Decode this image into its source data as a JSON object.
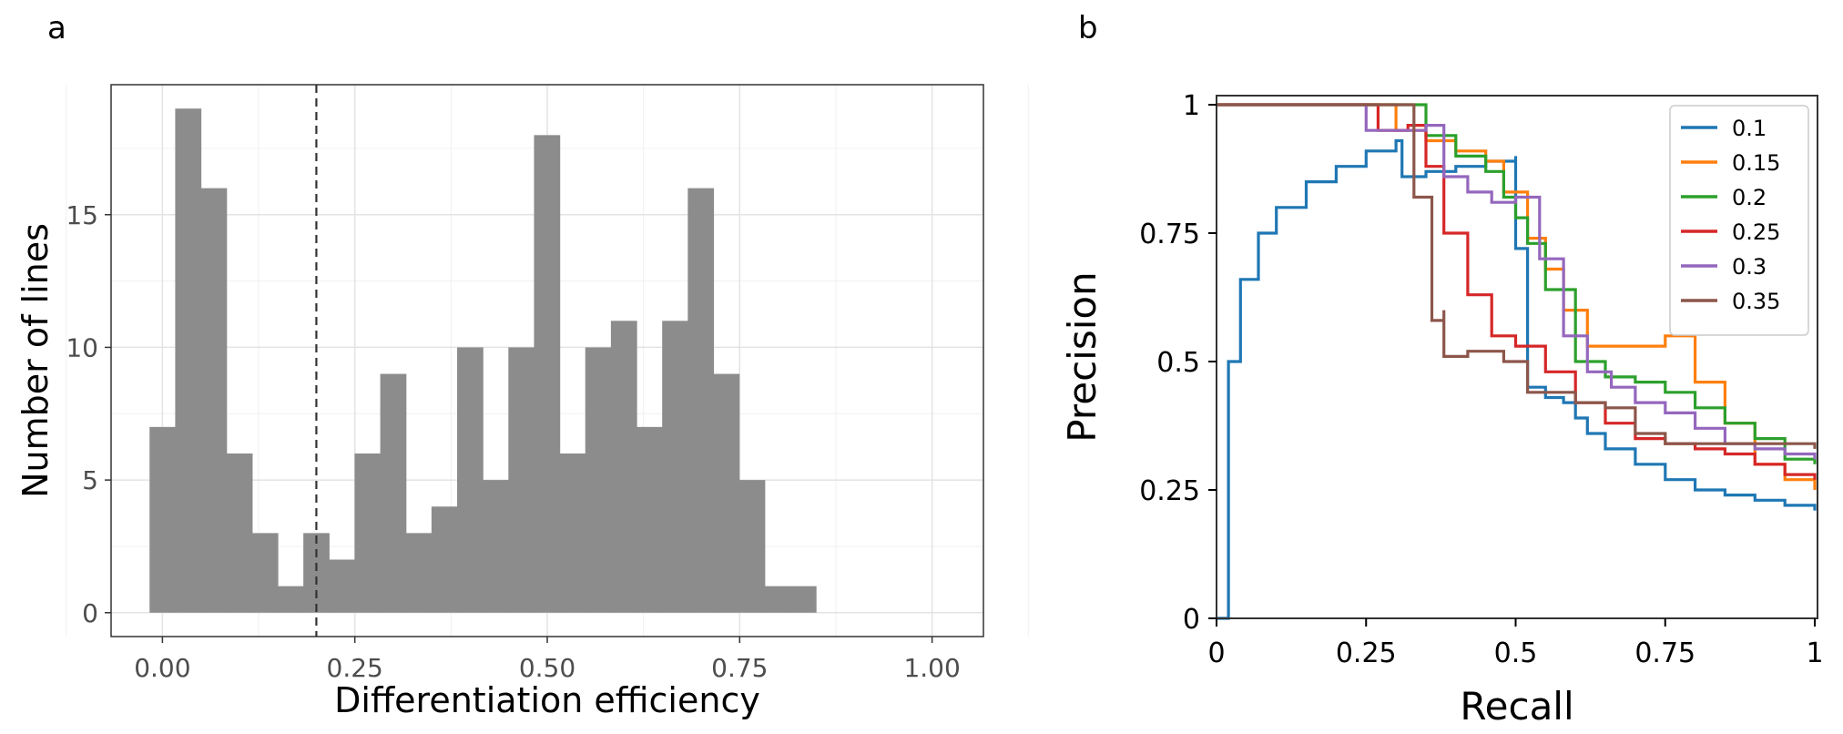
{
  "panels": {
    "a": "a",
    "b": "b"
  },
  "chart_data": [
    {
      "type": "bar",
      "panel": "a",
      "xlabel": "Differentiation efficiency",
      "ylabel": "Number of lines",
      "bin_width": 0.0333,
      "bin_start": -0.0167,
      "values": [
        7,
        19,
        16,
        6,
        3,
        1,
        3,
        2,
        6,
        9,
        3,
        4,
        10,
        5,
        10,
        18,
        6,
        10,
        11,
        7,
        11,
        16,
        9,
        5,
        1,
        1
      ],
      "xlim": [
        -0.0667,
        1.0667
      ],
      "ylim": [
        -0.9,
        19.9
      ],
      "x_ticks": [
        0.0,
        0.25,
        0.5,
        0.75,
        1.0
      ],
      "x_tick_labels": [
        "0.00",
        "0.25",
        "0.50",
        "0.75",
        "1.00"
      ],
      "y_ticks": [
        0,
        5,
        10,
        15
      ],
      "y_tick_labels": [
        "0",
        "5",
        "10",
        "15"
      ],
      "threshold": 0.2,
      "grid": true,
      "bar_color": "#8c8c8c"
    },
    {
      "type": "line",
      "panel": "b",
      "xlabel": "Recall",
      "ylabel": "Precision",
      "xlim": [
        0,
        1
      ],
      "ylim": [
        0,
        1
      ],
      "x_ticks": [
        0,
        0.25,
        0.5,
        0.75,
        1
      ],
      "x_tick_labels": [
        "0",
        "0.25",
        "0.5",
        "0.75",
        "1"
      ],
      "y_ticks": [
        0,
        0.25,
        0.5,
        0.75,
        1
      ],
      "y_tick_labels": [
        "0",
        "0.25",
        "0.5",
        "0.75",
        "1"
      ],
      "legend_position": "top-right",
      "series": [
        {
          "name": "0.1",
          "color": "#1f77b4",
          "x": [
            0,
            0.02,
            0.04,
            0.07,
            0.1,
            0.15,
            0.2,
            0.25,
            0.3,
            0.31,
            0.31,
            0.35,
            0.4,
            0.45,
            0.5,
            0.5,
            0.52,
            0.52,
            0.55,
            0.58,
            0.6,
            0.62,
            0.65,
            0.7,
            0.75,
            0.8,
            0.85,
            0.9,
            0.95,
            1.0
          ],
          "y": [
            0,
            0.5,
            0.66,
            0.75,
            0.8,
            0.85,
            0.88,
            0.91,
            0.93,
            0.93,
            0.86,
            0.87,
            0.88,
            0.89,
            0.9,
            0.72,
            0.72,
            0.45,
            0.43,
            0.42,
            0.39,
            0.36,
            0.33,
            0.3,
            0.27,
            0.25,
            0.24,
            0.23,
            0.22,
            0.21
          ]
        },
        {
          "name": "0.15",
          "color": "#ff7f0e",
          "x": [
            0,
            0.3,
            0.3,
            0.35,
            0.4,
            0.45,
            0.48,
            0.52,
            0.55,
            0.58,
            0.62,
            0.68,
            0.75,
            0.8,
            0.85,
            0.9,
            0.95,
            1.0
          ],
          "y": [
            1.0,
            1.0,
            0.95,
            0.93,
            0.91,
            0.89,
            0.83,
            0.74,
            0.68,
            0.6,
            0.53,
            0.53,
            0.55,
            0.46,
            0.38,
            0.3,
            0.27,
            0.25
          ]
        },
        {
          "name": "0.2",
          "color": "#2ca02c",
          "x": [
            0,
            0.35,
            0.35,
            0.4,
            0.45,
            0.48,
            0.5,
            0.52,
            0.55,
            0.6,
            0.65,
            0.7,
            0.75,
            0.8,
            0.85,
            0.9,
            0.95,
            1.0
          ],
          "y": [
            1.0,
            1.0,
            0.94,
            0.9,
            0.87,
            0.82,
            0.78,
            0.73,
            0.64,
            0.5,
            0.47,
            0.46,
            0.44,
            0.41,
            0.38,
            0.35,
            0.31,
            0.3
          ]
        },
        {
          "name": "0.25",
          "color": "#d62728",
          "x": [
            0,
            0.27,
            0.27,
            0.32,
            0.35,
            0.38,
            0.42,
            0.46,
            0.5,
            0.55,
            0.6,
            0.65,
            0.7,
            0.75,
            0.8,
            0.85,
            0.9,
            0.95,
            1.0
          ],
          "y": [
            1.0,
            1.0,
            0.95,
            0.96,
            0.88,
            0.75,
            0.63,
            0.55,
            0.53,
            0.48,
            0.42,
            0.38,
            0.35,
            0.34,
            0.33,
            0.32,
            0.3,
            0.28,
            0.27
          ]
        },
        {
          "name": "0.3",
          "color": "#9467bd",
          "x": [
            0,
            0.25,
            0.25,
            0.3,
            0.35,
            0.38,
            0.42,
            0.46,
            0.5,
            0.54,
            0.58,
            0.62,
            0.66,
            0.7,
            0.75,
            0.8,
            0.85,
            0.9,
            0.95,
            1.0
          ],
          "y": [
            1.0,
            1.0,
            0.95,
            0.95,
            0.96,
            0.86,
            0.83,
            0.81,
            0.82,
            0.7,
            0.55,
            0.48,
            0.45,
            0.42,
            0.4,
            0.37,
            0.34,
            0.33,
            0.32,
            0.31
          ]
        },
        {
          "name": "0.35",
          "color": "#8c564b",
          "x": [
            0,
            0.33,
            0.33,
            0.36,
            0.36,
            0.38,
            0.38,
            0.42,
            0.48,
            0.52,
            0.56,
            0.6,
            0.65,
            0.7,
            0.75,
            0.8,
            0.85,
            0.9,
            0.95,
            1.0
          ],
          "y": [
            1.0,
            1.0,
            0.82,
            0.82,
            0.58,
            0.6,
            0.51,
            0.52,
            0.5,
            0.44,
            0.44,
            0.42,
            0.41,
            0.36,
            0.34,
            0.34,
            0.34,
            0.34,
            0.34,
            0.33
          ]
        }
      ]
    }
  ]
}
